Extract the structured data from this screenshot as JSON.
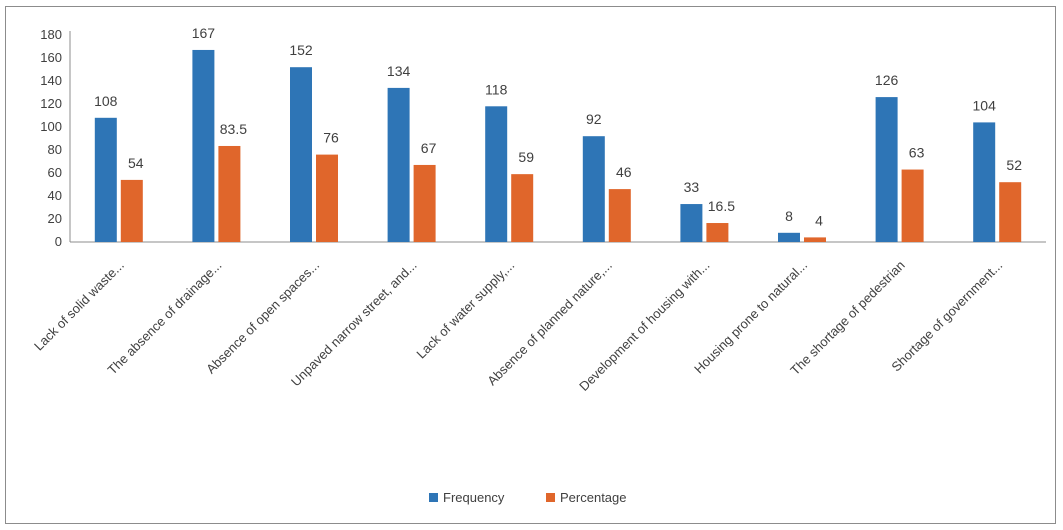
{
  "chart_data": {
    "type": "bar",
    "categories": [
      "Lack of solid waste...",
      "The absence of drainage...",
      "Absence of open spaces...",
      "Unpaved narrow street, and...",
      "Lack of water supply,...",
      "Absence of planned nature,...",
      "Development of housing with...",
      "Housing prone to natural...",
      "The shortage of pedestrian",
      "Shortage of government..."
    ],
    "series": [
      {
        "name": "Frequency",
        "color": "#2e75b6",
        "values": [
          108,
          167,
          152,
          134,
          118,
          92,
          33,
          8,
          126,
          104
        ],
        "labels": [
          "108",
          "167",
          "152",
          "134",
          "118",
          "92",
          "33",
          "8",
          "126",
          "104"
        ]
      },
      {
        "name": "Percentage",
        "color": "#e0662b",
        "values": [
          54,
          83.5,
          76,
          67,
          59,
          46,
          16.5,
          4,
          63,
          52
        ],
        "labels": [
          "54",
          "83.5",
          "76",
          "67",
          "59",
          "46",
          "16.5",
          "4",
          "63",
          "52"
        ]
      }
    ],
    "ylim": [
      0,
      180
    ],
    "yticks": [
      "0",
      "20",
      "40",
      "60",
      "80",
      "100",
      "120",
      "140",
      "160",
      "180"
    ],
    "title": "",
    "xlabel": "",
    "ylabel": "",
    "grid": false,
    "legend": "bottom"
  }
}
